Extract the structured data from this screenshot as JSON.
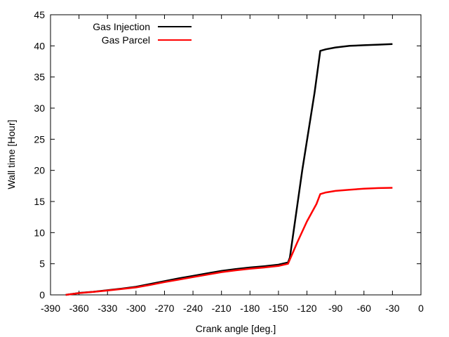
{
  "chart_data": {
    "type": "line",
    "title": "",
    "xlabel": "Crank angle [deg.]",
    "ylabel": "Wall time [Hour]",
    "xlim": [
      -390,
      0
    ],
    "ylim": [
      0,
      45
    ],
    "xticks": [
      -390,
      -360,
      -330,
      -300,
      -270,
      -240,
      -210,
      -180,
      -150,
      -120,
      -90,
      -60,
      -30,
      0
    ],
    "yticks": [
      0,
      5,
      10,
      15,
      20,
      25,
      30,
      35,
      40,
      45
    ],
    "grid": false,
    "legend_position": "top-left",
    "series": [
      {
        "name": "Gas Injection",
        "color": "#000000",
        "points": [
          [
            -374,
            0
          ],
          [
            -360,
            0.3
          ],
          [
            -345,
            0.5
          ],
          [
            -330,
            0.75
          ],
          [
            -315,
            1.0
          ],
          [
            -300,
            1.3
          ],
          [
            -285,
            1.75
          ],
          [
            -270,
            2.2
          ],
          [
            -255,
            2.65
          ],
          [
            -240,
            3.05
          ],
          [
            -225,
            3.45
          ],
          [
            -210,
            3.85
          ],
          [
            -195,
            4.15
          ],
          [
            -180,
            4.4
          ],
          [
            -165,
            4.6
          ],
          [
            -150,
            4.85
          ],
          [
            -140,
            5.2
          ],
          [
            -138,
            6.0
          ],
          [
            -125,
            20.0
          ],
          [
            -112,
            32.5
          ],
          [
            -106,
            39.2
          ],
          [
            -100,
            39.45
          ],
          [
            -90,
            39.75
          ],
          [
            -75,
            40.0
          ],
          [
            -60,
            40.1
          ],
          [
            -45,
            40.2
          ],
          [
            -30,
            40.3
          ]
        ]
      },
      {
        "name": "Gas Parcel",
        "color": "#ff0000",
        "points": [
          [
            -374,
            0
          ],
          [
            -360,
            0.28
          ],
          [
            -345,
            0.48
          ],
          [
            -330,
            0.7
          ],
          [
            -315,
            0.95
          ],
          [
            -300,
            1.2
          ],
          [
            -285,
            1.6
          ],
          [
            -270,
            2.05
          ],
          [
            -255,
            2.45
          ],
          [
            -240,
            2.85
          ],
          [
            -225,
            3.25
          ],
          [
            -210,
            3.65
          ],
          [
            -195,
            3.95
          ],
          [
            -180,
            4.2
          ],
          [
            -165,
            4.4
          ],
          [
            -150,
            4.65
          ],
          [
            -140,
            5.0
          ],
          [
            -130,
            8.5
          ],
          [
            -120,
            11.8
          ],
          [
            -110,
            14.6
          ],
          [
            -106,
            16.2
          ],
          [
            -100,
            16.45
          ],
          [
            -90,
            16.7
          ],
          [
            -75,
            16.9
          ],
          [
            -60,
            17.05
          ],
          [
            -45,
            17.15
          ],
          [
            -30,
            17.2
          ]
        ]
      }
    ]
  }
}
